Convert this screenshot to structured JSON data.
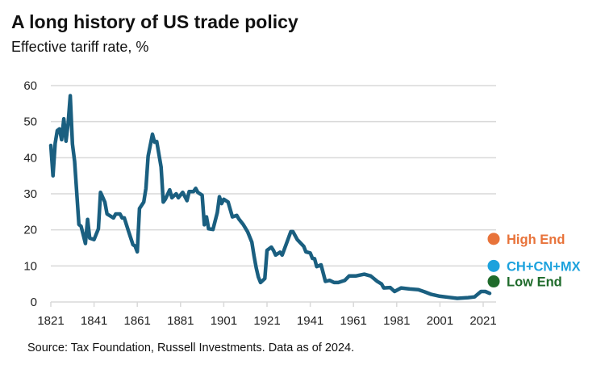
{
  "title": "A long history of US trade policy",
  "subtitle": "Effective tariff rate, %",
  "source": "Source: Tax Foundation, Russell Investments. Data as of 2024.",
  "chart_data": {
    "type": "line",
    "title": "A long history of US trade policy",
    "ylabel": "Effective tariff rate, %",
    "xlim": [
      1821,
      2024
    ],
    "ylim": [
      0,
      60
    ],
    "xticks": [
      "1821",
      "1841",
      "1861",
      "1881",
      "1901",
      "1921",
      "1941",
      "1961",
      "1981",
      "2001",
      "2021"
    ],
    "yticks": [
      "0",
      "10",
      "20",
      "30",
      "40",
      "50",
      "60"
    ],
    "grid": "horizontal",
    "line_color": "#1A5F80",
    "series": [
      {
        "x": [
          1821,
          1822,
          1823,
          1824,
          1825,
          1826,
          1827,
          1828,
          1829,
          1830,
          1831,
          1832,
          1834,
          1835,
          1837,
          1838,
          1839,
          1841,
          1843,
          1844,
          1846,
          1847,
          1850,
          1851,
          1853,
          1854,
          1855,
          1857,
          1859,
          1860,
          1861,
          1862,
          1864,
          1865,
          1866,
          1868,
          1869,
          1870,
          1872,
          1873,
          1874,
          1876,
          1877,
          1879,
          1880,
          1882,
          1884,
          1885,
          1887,
          1888,
          1889,
          1891,
          1892,
          1893,
          1894,
          1896,
          1898,
          1899,
          1900,
          1901,
          1903,
          1905,
          1907,
          1908,
          1910,
          1912,
          1914,
          1915,
          1916,
          1917,
          1918,
          1920,
          1921,
          1923,
          1924,
          1925,
          1927,
          1928,
          1930,
          1932,
          1933,
          1935,
          1938,
          1939,
          1941,
          1942,
          1943,
          1944,
          1946,
          1948,
          1950,
          1952,
          1954,
          1957,
          1959,
          1962,
          1966,
          1969,
          1972,
          1974,
          1975,
          1978,
          1980,
          1983,
          1987,
          1991,
          1994,
          1997,
          2001,
          2005,
          2009,
          2014,
          2017,
          2020,
          2022,
          2024
        ],
        "y": [
          43.4,
          35,
          44,
          47.5,
          48,
          45,
          50.8,
          44.6,
          49.4,
          57.2,
          43.8,
          39,
          21.5,
          21,
          16.2,
          22.9,
          17.7,
          17.3,
          20.3,
          30.4,
          27.7,
          24.4,
          23.3,
          24.4,
          24.4,
          23.3,
          23.3,
          19.5,
          15.9,
          15.5,
          13.9,
          25.9,
          27.7,
          31.5,
          40.4,
          46.5,
          44.3,
          44.5,
          37.4,
          27.7,
          28.5,
          31.1,
          28.9,
          30,
          28.9,
          30.4,
          28.1,
          30.6,
          30.6,
          31.5,
          30.4,
          29.6,
          21.4,
          23.6,
          20.3,
          20.1,
          24.8,
          29.2,
          27.3,
          28.5,
          27.7,
          23.6,
          24,
          23,
          21.5,
          19.5,
          16.6,
          12.8,
          9.5,
          6.9,
          5.4,
          6.5,
          14.3,
          15.2,
          14.3,
          13,
          13.8,
          13,
          16.2,
          19.5,
          19.5,
          17.3,
          15.4,
          13.9,
          13.6,
          12.1,
          12,
          9.8,
          10.3,
          5.7,
          6,
          5.4,
          5.4,
          6,
          7.2,
          7.2,
          7.7,
          7.2,
          5.7,
          5,
          3.9,
          4,
          2.9,
          3.9,
          3.6,
          3.4,
          2.8,
          2.1,
          1.6,
          1.3,
          1.0,
          1.2,
          1.4,
          2.9,
          2.9,
          2.4
        ]
      }
    ],
    "scenarios": [
      {
        "label": "High End",
        "value": 17.5,
        "color": "#E8733A"
      },
      {
        "label": "CH+CN+MX",
        "value": 10.0,
        "color": "#1CA2DD"
      },
      {
        "label": "Low End",
        "value": 5.7,
        "color": "#1F6B2B"
      }
    ]
  }
}
